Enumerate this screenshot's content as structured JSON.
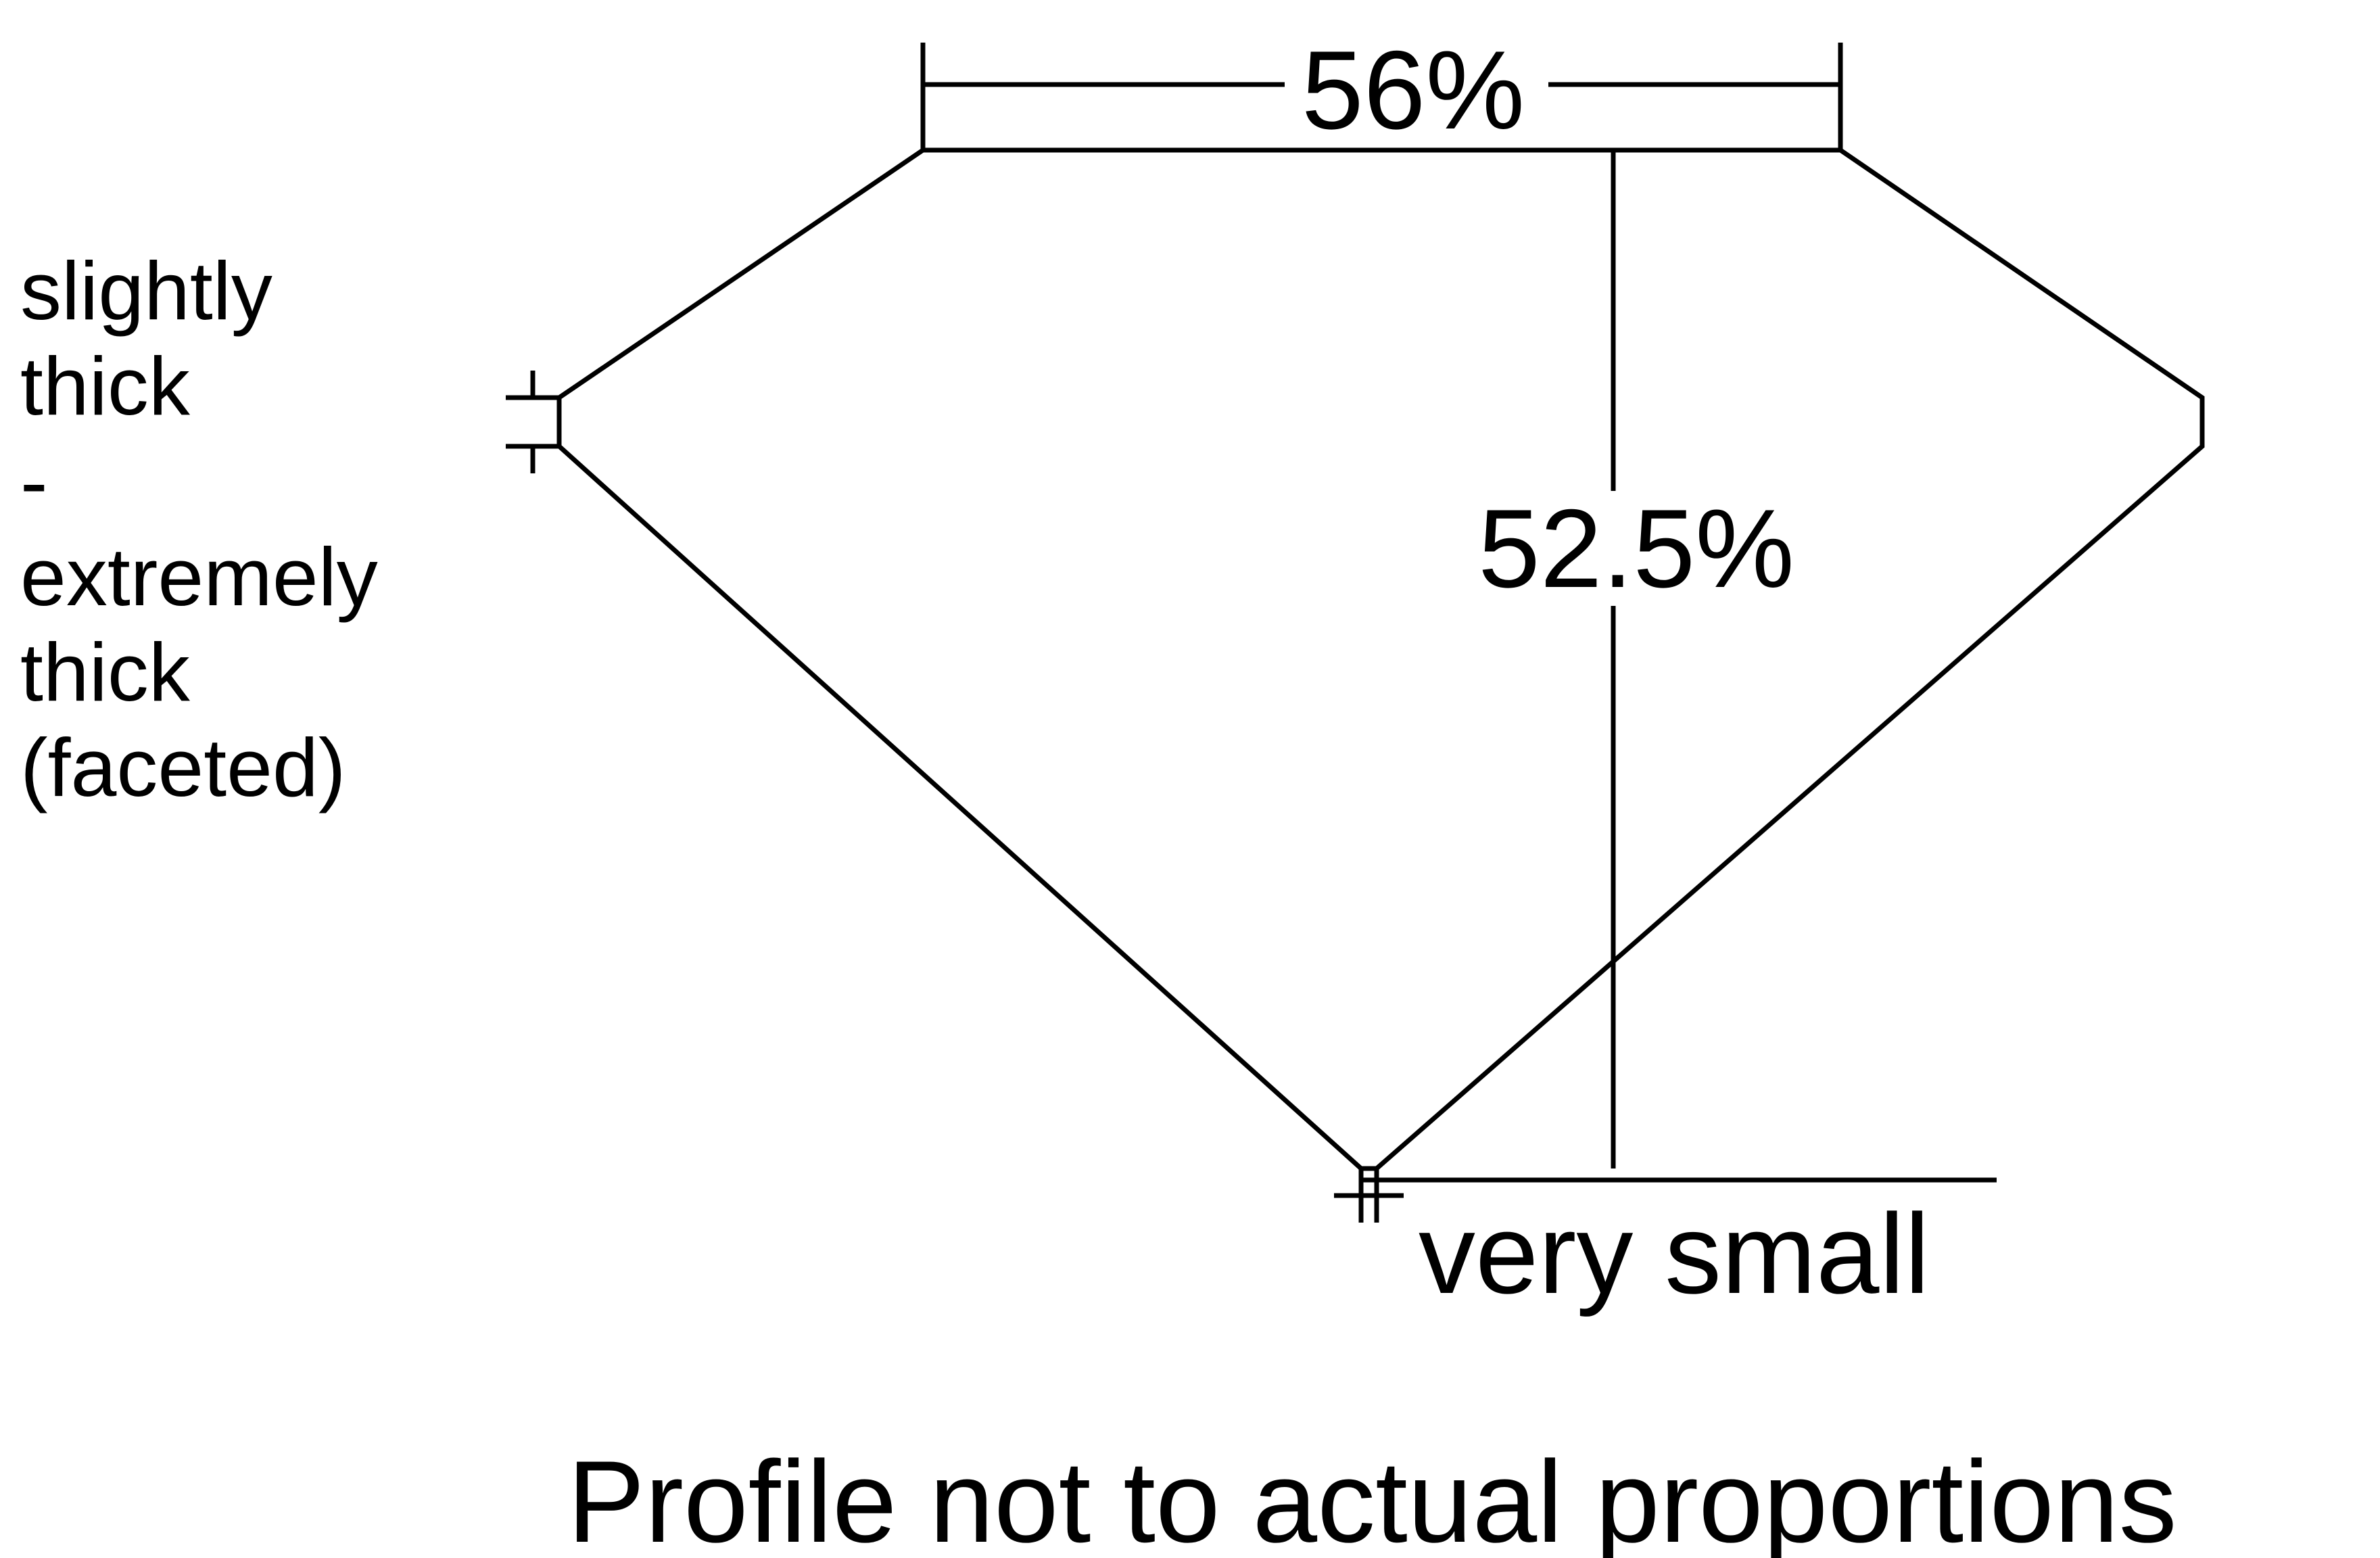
{
  "diagram": {
    "table_percent": "56%",
    "total_depth_percent": "52.5%",
    "girdle_label_lines": [
      "slightly",
      "thick",
      "-",
      "extremely",
      "thick",
      "(faceted)"
    ],
    "culet_label": "very small",
    "footnote": "Profile not to actual proportions",
    "line_color": "#000000",
    "background_color": "#ffffff"
  }
}
